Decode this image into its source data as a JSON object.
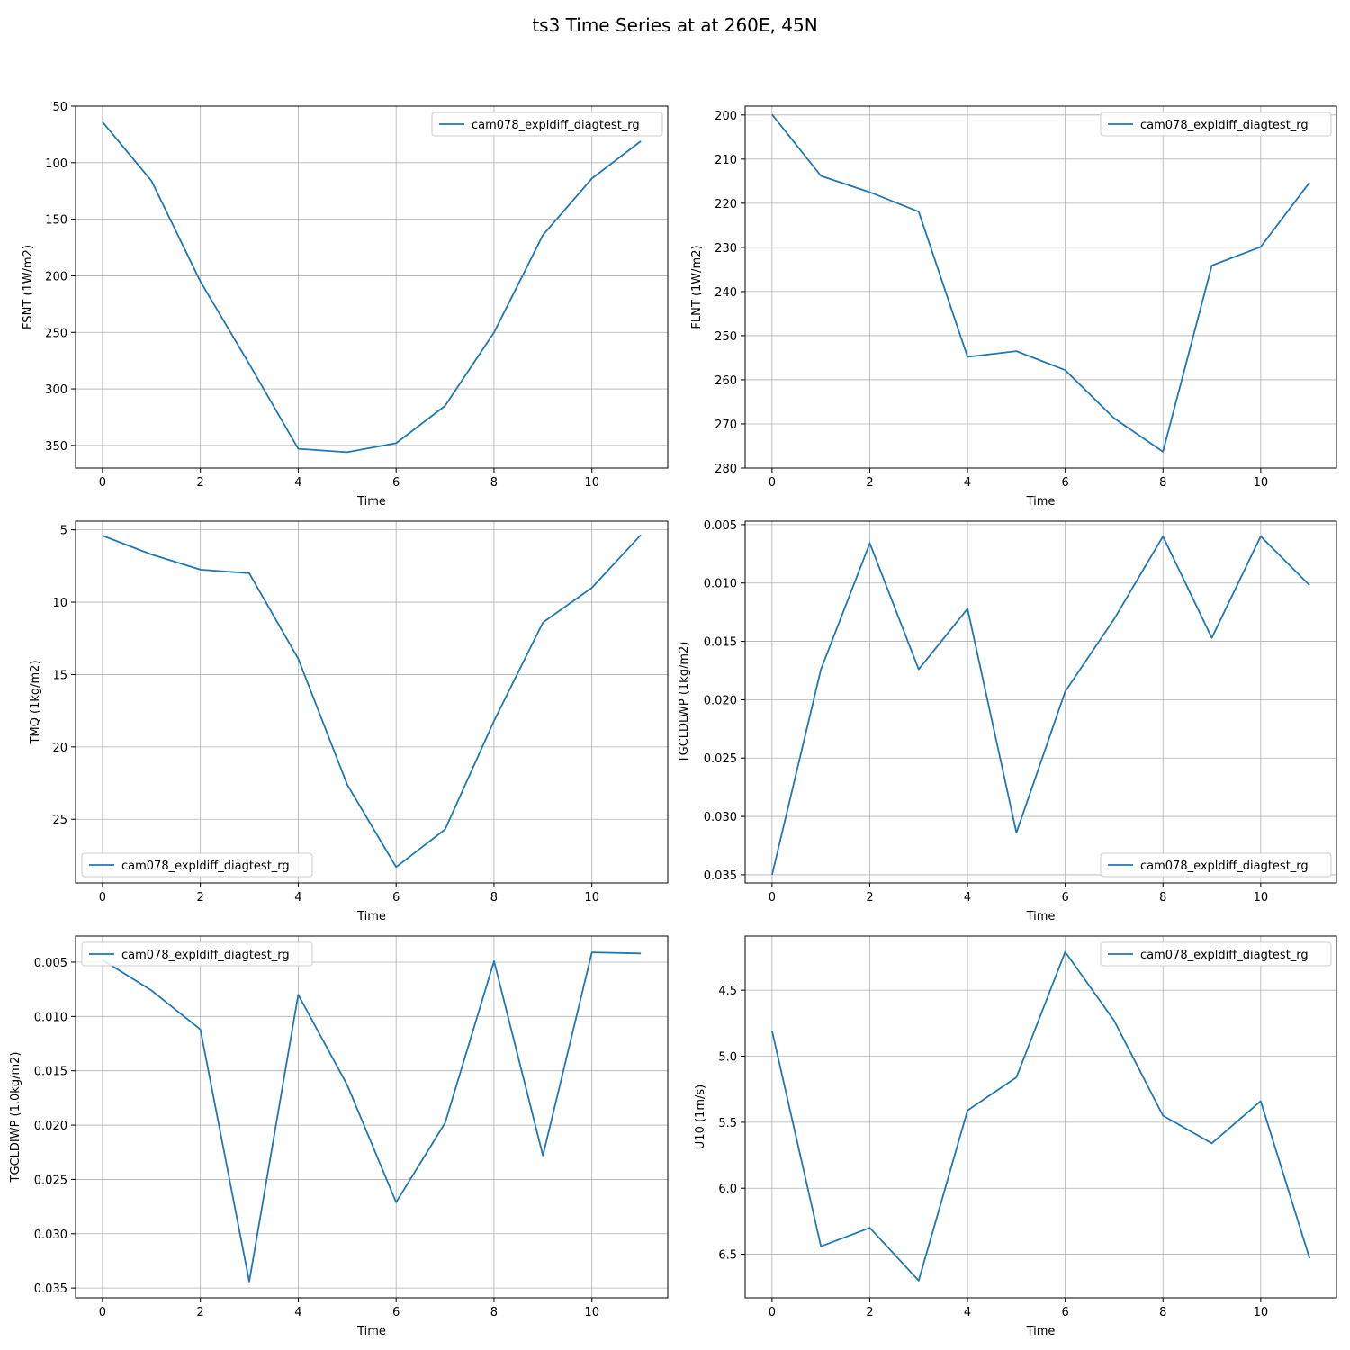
{
  "figure": {
    "title": "ts3 Time Series at at 260E, 45N"
  },
  "colors": {
    "series": "#1f77b4",
    "grid": "#b0b0b0",
    "axis": "#000000"
  },
  "chart_data": [
    {
      "type": "line",
      "title": "",
      "xlabel": "Time",
      "ylabel": "FSNT (1W/m2)",
      "xlim": [
        -0.55,
        11.55
      ],
      "ylim": [
        370,
        50
      ],
      "inverted_y": true,
      "grid": true,
      "legend": "upper right",
      "xticks": [
        0,
        2,
        4,
        6,
        8,
        10
      ],
      "yticks": [
        50,
        100,
        150,
        200,
        250,
        300,
        350
      ],
      "series": [
        {
          "name": "cam078_expldiff_diagtest_rg",
          "x": [
            0,
            1,
            2,
            3,
            4,
            5,
            6,
            7,
            8,
            9,
            10,
            11
          ],
          "y": [
            64,
            116,
            205,
            278,
            353,
            356,
            348,
            315,
            250,
            164,
            114,
            81
          ]
        }
      ]
    },
    {
      "type": "line",
      "title": "",
      "xlabel": "Time",
      "ylabel": "FLNT (1W/m2)",
      "xlim": [
        -0.55,
        11.55
      ],
      "ylim": [
        280,
        198
      ],
      "inverted_y": true,
      "grid": true,
      "legend": "upper right",
      "xticks": [
        0,
        2,
        4,
        6,
        8,
        10
      ],
      "yticks": [
        200,
        210,
        220,
        230,
        240,
        250,
        260,
        270,
        280
      ],
      "series": [
        {
          "name": "cam078_expldiff_diagtest_rg",
          "x": [
            0,
            1,
            2,
            3,
            4,
            5,
            6,
            7,
            8,
            9,
            10,
            11
          ],
          "y": [
            199.9,
            213.8,
            217.5,
            221.9,
            254.8,
            253.5,
            257.8,
            268.7,
            276.3,
            234.1,
            229.9,
            215.3
          ]
        }
      ]
    },
    {
      "type": "line",
      "title": "",
      "xlabel": "Time",
      "ylabel": "TMQ (1kg/m2)",
      "xlim": [
        -0.55,
        11.55
      ],
      "ylim": [
        29.4,
        4.4
      ],
      "inverted_y": true,
      "grid": true,
      "legend": "lower left",
      "xticks": [
        0,
        2,
        4,
        6,
        8,
        10
      ],
      "yticks": [
        5,
        10,
        15,
        20,
        25
      ],
      "series": [
        {
          "name": "cam078_expldiff_diagtest_rg",
          "x": [
            0,
            1,
            2,
            3,
            4,
            5,
            6,
            7,
            8,
            9,
            10,
            11
          ],
          "y": [
            5.4,
            6.7,
            7.75,
            8.0,
            13.9,
            22.6,
            28.3,
            25.7,
            18.2,
            11.4,
            9.0,
            5.35
          ]
        }
      ]
    },
    {
      "type": "line",
      "title": "",
      "xlabel": "Time",
      "ylabel": "TGCLDLWP (1kg/m2)",
      "xlim": [
        -0.55,
        11.55
      ],
      "ylim": [
        0.0357,
        0.0047
      ],
      "inverted_y": true,
      "grid": true,
      "legend": "lower right",
      "xticks": [
        0,
        2,
        4,
        6,
        8,
        10
      ],
      "yticks": [
        0.005,
        0.01,
        0.015,
        0.02,
        0.025,
        0.03,
        0.035
      ],
      "ytick_labels": [
        "0.005",
        "0.010",
        "0.015",
        "0.020",
        "0.025",
        "0.030",
        "0.035"
      ],
      "series": [
        {
          "name": "cam078_expldiff_diagtest_rg",
          "x": [
            0,
            1,
            2,
            3,
            4,
            5,
            6,
            7,
            8,
            9,
            10,
            11
          ],
          "y": [
            0.035,
            0.0174,
            0.0066,
            0.0174,
            0.0122,
            0.0314,
            0.0193,
            0.0131,
            0.006,
            0.0147,
            0.006,
            0.0102
          ]
        }
      ]
    },
    {
      "type": "line",
      "title": "",
      "xlabel": "Time",
      "ylabel": "TGCLDIWP (1.0kg/m2)",
      "xlim": [
        -0.55,
        11.55
      ],
      "ylim": [
        0.0359,
        0.0026
      ],
      "inverted_y": true,
      "grid": true,
      "legend": "upper left",
      "xticks": [
        0,
        2,
        4,
        6,
        8,
        10
      ],
      "yticks": [
        0.005,
        0.01,
        0.015,
        0.02,
        0.025,
        0.03,
        0.035
      ],
      "ytick_labels": [
        "0.005",
        "0.010",
        "0.015",
        "0.020",
        "0.025",
        "0.030",
        "0.035"
      ],
      "series": [
        {
          "name": "cam078_expldiff_diagtest_rg",
          "x": [
            0,
            1,
            2,
            3,
            4,
            5,
            6,
            7,
            8,
            9,
            10,
            11
          ],
          "y": [
            0.0048,
            0.0076,
            0.0112,
            0.0344,
            0.008,
            0.0163,
            0.0271,
            0.0198,
            0.0049,
            0.0228,
            0.0041,
            0.0042
          ]
        }
      ]
    },
    {
      "type": "line",
      "title": "",
      "xlabel": "Time",
      "ylabel": "U10 (1m/s)",
      "xlim": [
        -0.55,
        11.55
      ],
      "ylim": [
        6.83,
        4.09
      ],
      "inverted_y": true,
      "grid": true,
      "legend": "upper right",
      "xticks": [
        0,
        2,
        4,
        6,
        8,
        10
      ],
      "yticks": [
        4.5,
        5.0,
        5.5,
        6.0,
        6.5
      ],
      "ytick_labels": [
        "4.5",
        "5.0",
        "5.5",
        "6.0",
        "6.5"
      ],
      "series": [
        {
          "name": "cam078_expldiff_diagtest_rg",
          "x": [
            0,
            1,
            2,
            3,
            4,
            5,
            6,
            7,
            8,
            9,
            10,
            11
          ],
          "y": [
            4.81,
            6.44,
            6.3,
            6.7,
            5.41,
            5.16,
            4.21,
            4.73,
            5.45,
            5.66,
            5.34,
            6.53
          ]
        }
      ]
    }
  ]
}
